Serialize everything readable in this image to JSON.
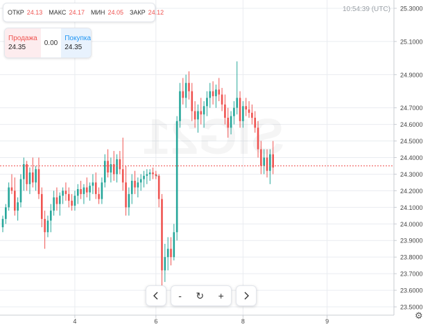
{
  "ohlc_bar": {
    "open_label": "ОТКР",
    "open_value": "24.13",
    "high_label": "МАКС",
    "high_value": "24.17",
    "low_label": "МИН",
    "low_value": "24.05",
    "close_label": "ЗАКР",
    "close_value": "24.12"
  },
  "quote": {
    "sell_label": "Продажа",
    "sell_value": "24.35",
    "spread": "0.00",
    "buy_label": "Покупка",
    "buy_value": "24.35"
  },
  "clock": "10:54:39 (UTC)",
  "watermark": "SIG21",
  "nav": {
    "prev_icon": "chevron-left-icon",
    "zoom_out": "-",
    "reset_icon": "↻",
    "zoom_in": "+",
    "next_icon": "chevron-right-icon"
  },
  "colors": {
    "up": "#26a69a",
    "down": "#ef5350",
    "price_line": "#ef5350",
    "grid": "#e9ecf0"
  },
  "chart_data": {
    "type": "candlestick",
    "xlabel": "",
    "ylabel": "",
    "ylim": [
      23.45,
      25.35
    ],
    "y_ticks": [
      "25.3000",
      "25.1000",
      "24.9000",
      "24.7000",
      "24.6000",
      "24.5000",
      "24.4000",
      "24.3000",
      "24.2000",
      "24.1000",
      "24.0000",
      "23.9000",
      "23.8000",
      "23.7000",
      "23.6000",
      "23.5000"
    ],
    "x_ticks": [
      {
        "label": "4",
        "index": 24
      },
      {
        "label": "6",
        "index": 51
      },
      {
        "label": "8",
        "index": 80
      },
      {
        "label": "9",
        "index": 108
      }
    ],
    "current_price": 24.35,
    "gap_after_index": 52,
    "candles": [
      [
        23.98,
        24.05,
        23.95,
        24.03
      ],
      [
        24.03,
        24.12,
        24.0,
        24.1
      ],
      [
        24.1,
        24.25,
        24.08,
        24.22
      ],
      [
        24.22,
        24.3,
        24.18,
        24.2
      ],
      [
        24.2,
        24.28,
        24.05,
        24.08
      ],
      [
        24.08,
        24.16,
        24.02,
        24.13
      ],
      [
        24.13,
        24.3,
        24.1,
        24.27
      ],
      [
        24.27,
        24.4,
        24.2,
        24.36
      ],
      [
        24.36,
        24.38,
        24.2,
        24.24
      ],
      [
        24.24,
        24.34,
        24.18,
        24.31
      ],
      [
        24.31,
        24.4,
        24.22,
        24.25
      ],
      [
        24.25,
        24.35,
        24.2,
        24.33
      ],
      [
        24.33,
        24.4,
        24.15,
        24.18
      ],
      [
        24.18,
        24.22,
        23.98,
        24.03
      ],
      [
        24.03,
        24.08,
        23.85,
        23.95
      ],
      [
        23.95,
        24.05,
        23.92,
        24.02
      ],
      [
        24.02,
        24.12,
        23.95,
        24.08
      ],
      [
        24.08,
        24.2,
        24.05,
        24.16
      ],
      [
        24.16,
        24.22,
        24.08,
        24.12
      ],
      [
        24.12,
        24.19,
        24.05,
        24.17
      ],
      [
        24.17,
        24.22,
        24.12,
        24.2
      ],
      [
        24.2,
        24.25,
        24.14,
        24.18
      ],
      [
        24.18,
        24.22,
        24.1,
        24.14
      ],
      [
        24.14,
        24.18,
        24.08,
        24.11
      ],
      [
        24.11,
        24.2,
        24.08,
        24.17
      ],
      [
        24.17,
        24.24,
        24.12,
        24.21
      ],
      [
        24.21,
        24.26,
        24.15,
        24.18
      ],
      [
        24.18,
        24.24,
        24.12,
        24.22
      ],
      [
        24.22,
        24.28,
        24.16,
        24.19
      ],
      [
        24.19,
        24.25,
        24.14,
        24.23
      ],
      [
        24.23,
        24.3,
        24.18,
        24.25
      ],
      [
        24.25,
        24.31,
        24.15,
        24.18
      ],
      [
        24.18,
        24.22,
        24.12,
        24.15
      ],
      [
        24.15,
        24.28,
        24.12,
        24.25
      ],
      [
        24.25,
        24.42,
        24.22,
        24.38
      ],
      [
        24.38,
        24.45,
        24.28,
        24.31
      ],
      [
        24.31,
        24.4,
        24.25,
        24.36
      ],
      [
        24.36,
        24.44,
        24.26,
        24.3
      ],
      [
        24.3,
        24.42,
        24.25,
        24.39
      ],
      [
        24.39,
        24.44,
        24.3,
        24.33
      ],
      [
        24.33,
        24.52,
        24.2,
        24.25
      ],
      [
        24.25,
        24.35,
        24.05,
        24.1
      ],
      [
        24.1,
        24.22,
        24.05,
        24.18
      ],
      [
        24.18,
        24.3,
        24.12,
        24.26
      ],
      [
        24.26,
        24.32,
        24.18,
        24.22
      ],
      [
        24.22,
        24.28,
        24.16,
        24.25
      ],
      [
        24.25,
        24.3,
        24.2,
        24.27
      ],
      [
        24.27,
        24.32,
        24.22,
        24.29
      ],
      [
        24.29,
        24.33,
        24.24,
        24.3
      ],
      [
        24.3,
        24.33,
        24.26,
        24.31
      ],
      [
        24.31,
        24.34,
        24.27,
        24.3
      ],
      [
        24.3,
        24.32,
        24.27,
        24.29
      ],
      [
        24.29,
        24.3,
        24.1,
        24.15
      ],
      [
        24.15,
        24.18,
        23.6,
        23.72
      ],
      [
        23.72,
        23.88,
        23.65,
        23.8
      ],
      [
        23.8,
        23.92,
        23.72,
        23.85
      ],
      [
        23.85,
        23.92,
        23.75,
        23.8
      ],
      [
        23.8,
        24.0,
        23.78,
        23.95
      ],
      [
        23.95,
        24.65,
        23.9,
        24.62
      ],
      [
        24.62,
        24.85,
        24.58,
        24.8
      ],
      [
        24.8,
        24.88,
        24.72,
        24.76
      ],
      [
        24.76,
        24.9,
        24.7,
        24.85
      ],
      [
        24.85,
        24.92,
        24.75,
        24.8
      ],
      [
        24.8,
        24.85,
        24.62,
        24.68
      ],
      [
        24.68,
        24.74,
        24.58,
        24.63
      ],
      [
        24.63,
        24.72,
        24.55,
        24.68
      ],
      [
        24.68,
        24.76,
        24.6,
        24.66
      ],
      [
        24.66,
        24.74,
        24.58,
        24.71
      ],
      [
        24.71,
        24.8,
        24.65,
        24.76
      ],
      [
        24.76,
        24.85,
        24.7,
        24.8
      ],
      [
        24.8,
        24.86,
        24.72,
        24.77
      ],
      [
        24.77,
        24.84,
        24.7,
        24.81
      ],
      [
        24.81,
        24.88,
        24.74,
        24.78
      ],
      [
        24.78,
        24.82,
        24.68,
        24.72
      ],
      [
        24.72,
        24.78,
        24.6,
        24.64
      ],
      [
        24.64,
        24.7,
        24.52,
        24.58
      ],
      [
        24.58,
        24.68,
        24.54,
        24.65
      ],
      [
        24.65,
        24.74,
        24.6,
        24.7
      ],
      [
        24.7,
        24.98,
        24.66,
        24.76
      ],
      [
        24.76,
        24.8,
        24.58,
        24.62
      ],
      [
        24.62,
        24.74,
        24.58,
        24.71
      ],
      [
        24.71,
        24.76,
        24.65,
        24.69
      ],
      [
        24.69,
        24.74,
        24.64,
        24.67
      ],
      [
        24.67,
        24.72,
        24.6,
        24.64
      ],
      [
        24.64,
        24.68,
        24.55,
        24.58
      ],
      [
        24.58,
        24.62,
        24.4,
        24.45
      ],
      [
        24.45,
        24.5,
        24.3,
        24.35
      ],
      [
        24.35,
        24.45,
        24.3,
        24.4
      ],
      [
        24.4,
        24.45,
        24.28,
        24.32
      ],
      [
        24.32,
        24.45,
        24.24,
        24.42
      ],
      [
        24.42,
        24.5,
        24.3,
        24.34
      ]
    ]
  }
}
